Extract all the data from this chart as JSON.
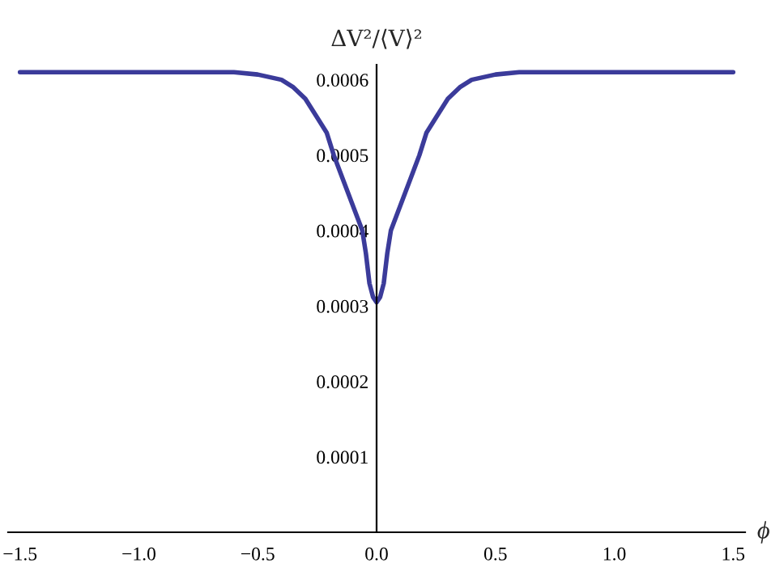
{
  "chart_data": {
    "type": "line",
    "xlabel": "ϕ",
    "ylabel": "ΔV²/⟨V⟩²",
    "x": [
      -1.5,
      -1.2,
      -0.9,
      -0.7,
      -0.6,
      -0.5,
      -0.4,
      -0.35,
      -0.3,
      -0.25,
      -0.21,
      -0.18,
      -0.15,
      -0.12,
      -0.09,
      -0.06,
      -0.045,
      -0.03,
      -0.015,
      0,
      0.015,
      0.03,
      0.045,
      0.06,
      0.09,
      0.12,
      0.15,
      0.18,
      0.21,
      0.25,
      0.3,
      0.35,
      0.4,
      0.5,
      0.6,
      0.7,
      0.9,
      1.2,
      1.5
    ],
    "series": [
      {
        "color": "#3b3b9a",
        "values": [
          0.00061,
          0.00061,
          0.00061,
          0.00061,
          0.00061,
          0.000607,
          0.0006,
          0.00059,
          0.000575,
          0.00055,
          0.00053,
          0.0005,
          0.000475,
          0.00045,
          0.000425,
          0.0004,
          0.00037,
          0.00033,
          0.000312,
          0.000305,
          0.000312,
          0.00033,
          0.00037,
          0.0004,
          0.000425,
          0.00045,
          0.000475,
          0.0005,
          0.00053,
          0.00055,
          0.000575,
          0.00059,
          0.0006,
          0.000607,
          0.00061,
          0.00061,
          0.00061,
          0.00061,
          0.00061
        ]
      }
    ],
    "xlim": [
      -1.55,
      1.55
    ],
    "ylim": [
      0,
      0.00062
    ],
    "xticks": [
      {
        "value": -1.5,
        "label": "−1.5"
      },
      {
        "value": -1.0,
        "label": "−1.0"
      },
      {
        "value": -0.5,
        "label": "−0.5"
      },
      {
        "value": 0,
        "label": "0.0"
      },
      {
        "value": 0.5,
        "label": "0.5"
      },
      {
        "value": 1.0,
        "label": "1.0"
      },
      {
        "value": 1.5,
        "label": "1.5"
      }
    ],
    "yticks": [
      0.0001,
      0.0002,
      0.0003,
      0.0004,
      0.0005,
      0.0006
    ],
    "grid": false,
    "legend": false,
    "marker": "none",
    "line_style": "solid"
  }
}
